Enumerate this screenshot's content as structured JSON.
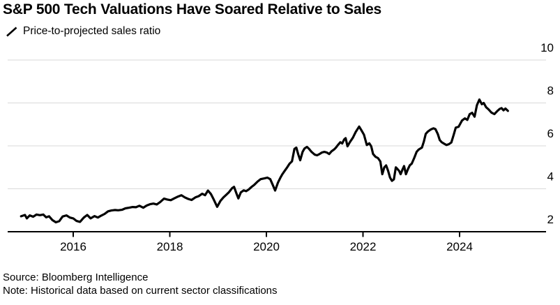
{
  "title": "S&P 500 Tech Valuations Have Soared Relative to Sales",
  "legend": {
    "icon": "diagonal-line-swatch-icon",
    "label": "Price-to-projected sales ratio"
  },
  "footer": {
    "source": "Source: Bloomberg Intelligence",
    "note": "Note: Historical data based on current sector classifications"
  },
  "chart_data": {
    "type": "line",
    "title": "S&P 500 Tech Valuations Have Soared Relative to Sales",
    "subtitle": "Price-to-projected sales ratio",
    "xlabel": "",
    "ylabel": "",
    "x_ticks": [
      2016,
      2018,
      2020,
      2022,
      2024
    ],
    "y_ticks": [
      2,
      4,
      6,
      8,
      10
    ],
    "ylim": [
      2,
      10
    ],
    "xlim_years": [
      2014.64,
      2025.79
    ],
    "grid": "horizontal",
    "y_axis_side": "right",
    "colors": {
      "line": "#000000",
      "grid": "#d9d9d9",
      "axis": "#000000",
      "text": "#000000",
      "background": "#ffffff"
    },
    "series": [
      {
        "name": "Price-to-projected sales ratio",
        "color": "#000000",
        "points": [
          [
            2014.92,
            2.72
          ],
          [
            2015.0,
            2.78
          ],
          [
            2015.04,
            2.62
          ],
          [
            2015.1,
            2.76
          ],
          [
            2015.17,
            2.7
          ],
          [
            2015.24,
            2.8
          ],
          [
            2015.31,
            2.77
          ],
          [
            2015.38,
            2.8
          ],
          [
            2015.44,
            2.67
          ],
          [
            2015.5,
            2.72
          ],
          [
            2015.57,
            2.54
          ],
          [
            2015.64,
            2.44
          ],
          [
            2015.71,
            2.49
          ],
          [
            2015.78,
            2.71
          ],
          [
            2015.86,
            2.76
          ],
          [
            2015.93,
            2.66
          ],
          [
            2016.0,
            2.62
          ],
          [
            2016.07,
            2.5
          ],
          [
            2016.14,
            2.46
          ],
          [
            2016.22,
            2.66
          ],
          [
            2016.29,
            2.78
          ],
          [
            2016.36,
            2.62
          ],
          [
            2016.44,
            2.73
          ],
          [
            2016.51,
            2.66
          ],
          [
            2016.58,
            2.75
          ],
          [
            2016.65,
            2.83
          ],
          [
            2016.72,
            2.95
          ],
          [
            2016.79,
            2.99
          ],
          [
            2016.86,
            3.01
          ],
          [
            2016.93,
            3.0
          ],
          [
            2017.01,
            3.02
          ],
          [
            2017.08,
            3.09
          ],
          [
            2017.16,
            3.12
          ],
          [
            2017.23,
            3.15
          ],
          [
            2017.3,
            3.14
          ],
          [
            2017.37,
            3.21
          ],
          [
            2017.45,
            3.12
          ],
          [
            2017.52,
            3.22
          ],
          [
            2017.59,
            3.28
          ],
          [
            2017.66,
            3.31
          ],
          [
            2017.73,
            3.27
          ],
          [
            2017.8,
            3.38
          ],
          [
            2017.88,
            3.54
          ],
          [
            2017.95,
            3.5
          ],
          [
            2018.02,
            3.47
          ],
          [
            2018.09,
            3.55
          ],
          [
            2018.17,
            3.64
          ],
          [
            2018.24,
            3.7
          ],
          [
            2018.31,
            3.6
          ],
          [
            2018.38,
            3.53
          ],
          [
            2018.45,
            3.48
          ],
          [
            2018.53,
            3.6
          ],
          [
            2018.6,
            3.66
          ],
          [
            2018.67,
            3.77
          ],
          [
            2018.73,
            3.7
          ],
          [
            2018.79,
            3.92
          ],
          [
            2018.85,
            3.76
          ],
          [
            2018.91,
            3.5
          ],
          [
            2018.98,
            3.16
          ],
          [
            2019.05,
            3.44
          ],
          [
            2019.11,
            3.6
          ],
          [
            2019.16,
            3.7
          ],
          [
            2019.22,
            3.83
          ],
          [
            2019.29,
            4.03
          ],
          [
            2019.33,
            4.09
          ],
          [
            2019.38,
            3.78
          ],
          [
            2019.42,
            3.55
          ],
          [
            2019.47,
            3.83
          ],
          [
            2019.53,
            3.93
          ],
          [
            2019.58,
            3.89
          ],
          [
            2019.63,
            3.96
          ],
          [
            2019.69,
            4.08
          ],
          [
            2019.75,
            4.19
          ],
          [
            2019.82,
            4.34
          ],
          [
            2019.88,
            4.45
          ],
          [
            2019.95,
            4.48
          ],
          [
            2020.02,
            4.52
          ],
          [
            2020.08,
            4.45
          ],
          [
            2020.13,
            4.19
          ],
          [
            2020.18,
            3.92
          ],
          [
            2020.24,
            4.29
          ],
          [
            2020.29,
            4.52
          ],
          [
            2020.33,
            4.68
          ],
          [
            2020.38,
            4.84
          ],
          [
            2020.43,
            5.0
          ],
          [
            2020.48,
            5.17
          ],
          [
            2020.53,
            5.28
          ],
          [
            2020.58,
            5.86
          ],
          [
            2020.62,
            5.92
          ],
          [
            2020.66,
            5.6
          ],
          [
            2020.7,
            5.33
          ],
          [
            2020.75,
            5.72
          ],
          [
            2020.79,
            5.88
          ],
          [
            2020.84,
            5.95
          ],
          [
            2020.88,
            5.87
          ],
          [
            2020.93,
            5.73
          ],
          [
            2021.0,
            5.59
          ],
          [
            2021.05,
            5.56
          ],
          [
            2021.1,
            5.62
          ],
          [
            2021.15,
            5.69
          ],
          [
            2021.2,
            5.72
          ],
          [
            2021.25,
            5.69
          ],
          [
            2021.3,
            5.62
          ],
          [
            2021.35,
            5.75
          ],
          [
            2021.4,
            5.83
          ],
          [
            2021.44,
            5.92
          ],
          [
            2021.48,
            6.04
          ],
          [
            2021.53,
            6.17
          ],
          [
            2021.57,
            6.11
          ],
          [
            2021.61,
            6.3
          ],
          [
            2021.64,
            6.36
          ],
          [
            2021.68,
            5.98
          ],
          [
            2021.73,
            6.18
          ],
          [
            2021.79,
            6.38
          ],
          [
            2021.85,
            6.65
          ],
          [
            2021.92,
            6.9
          ],
          [
            2021.97,
            6.72
          ],
          [
            2022.02,
            6.52
          ],
          [
            2022.08,
            6.04
          ],
          [
            2022.13,
            6.12
          ],
          [
            2022.17,
            5.98
          ],
          [
            2022.21,
            5.62
          ],
          [
            2022.26,
            5.49
          ],
          [
            2022.31,
            5.43
          ],
          [
            2022.36,
            5.27
          ],
          [
            2022.4,
            4.68
          ],
          [
            2022.44,
            5.0
          ],
          [
            2022.48,
            5.09
          ],
          [
            2022.52,
            4.84
          ],
          [
            2022.56,
            4.52
          ],
          [
            2022.6,
            4.37
          ],
          [
            2022.64,
            4.44
          ],
          [
            2022.68,
            5.0
          ],
          [
            2022.71,
            4.93
          ],
          [
            2022.75,
            4.83
          ],
          [
            2022.78,
            4.68
          ],
          [
            2022.82,
            4.91
          ],
          [
            2022.85,
            5.06
          ],
          [
            2022.89,
            4.68
          ],
          [
            2022.93,
            4.91
          ],
          [
            2022.97,
            5.1
          ],
          [
            2023.01,
            5.17
          ],
          [
            2023.06,
            5.43
          ],
          [
            2023.11,
            5.72
          ],
          [
            2023.15,
            5.82
          ],
          [
            2023.19,
            5.88
          ],
          [
            2023.22,
            5.92
          ],
          [
            2023.26,
            6.2
          ],
          [
            2023.3,
            6.56
          ],
          [
            2023.34,
            6.66
          ],
          [
            2023.4,
            6.76
          ],
          [
            2023.46,
            6.82
          ],
          [
            2023.5,
            6.78
          ],
          [
            2023.55,
            6.55
          ],
          [
            2023.59,
            6.27
          ],
          [
            2023.63,
            6.17
          ],
          [
            2023.68,
            6.1
          ],
          [
            2023.73,
            6.04
          ],
          [
            2023.78,
            6.08
          ],
          [
            2023.83,
            6.16
          ],
          [
            2023.88,
            6.53
          ],
          [
            2023.92,
            6.85
          ],
          [
            2023.98,
            6.89
          ],
          [
            2024.05,
            7.18
          ],
          [
            2024.11,
            7.28
          ],
          [
            2024.16,
            7.21
          ],
          [
            2024.21,
            7.48
          ],
          [
            2024.26,
            7.54
          ],
          [
            2024.31,
            7.36
          ],
          [
            2024.36,
            7.9
          ],
          [
            2024.41,
            8.16
          ],
          [
            2024.46,
            7.94
          ],
          [
            2024.5,
            8.0
          ],
          [
            2024.55,
            7.8
          ],
          [
            2024.6,
            7.7
          ],
          [
            2024.66,
            7.55
          ],
          [
            2024.72,
            7.48
          ],
          [
            2024.78,
            7.62
          ],
          [
            2024.83,
            7.72
          ],
          [
            2024.87,
            7.76
          ],
          [
            2024.91,
            7.66
          ],
          [
            2024.95,
            7.74
          ],
          [
            2025.0,
            7.63
          ]
        ]
      }
    ]
  }
}
